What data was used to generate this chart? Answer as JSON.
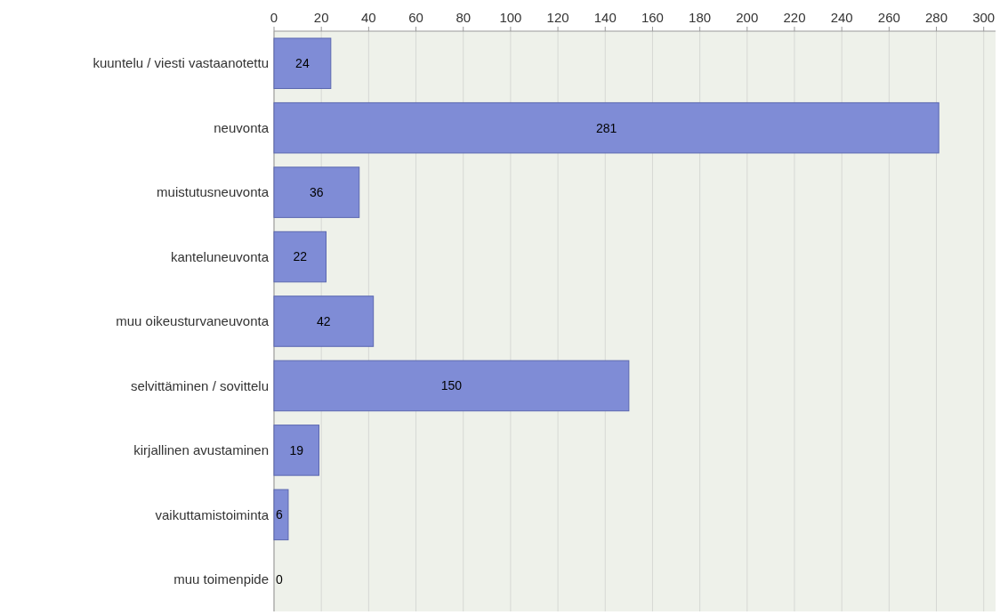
{
  "chart_data": {
    "type": "bar",
    "orientation": "horizontal",
    "categories": [
      "kuuntelu / viesti vastaanotettu",
      "neuvonta",
      "muistutusneuvonta",
      "kanteluneuvonta",
      "muu oikeusturvaneuvonta",
      "selvittäminen / sovittelu",
      "kirjallinen avustaminen",
      "vaikuttamistoiminta",
      "muu toimenpide"
    ],
    "values": [
      24,
      281,
      36,
      22,
      42,
      150,
      19,
      6,
      0
    ],
    "color": "#7f8cd6",
    "xlim": [
      0,
      305
    ],
    "xticks": [
      0,
      20,
      40,
      60,
      80,
      100,
      120,
      140,
      160,
      180,
      200,
      220,
      240,
      260,
      280,
      300
    ],
    "grid": "x",
    "data_labels": true
  }
}
